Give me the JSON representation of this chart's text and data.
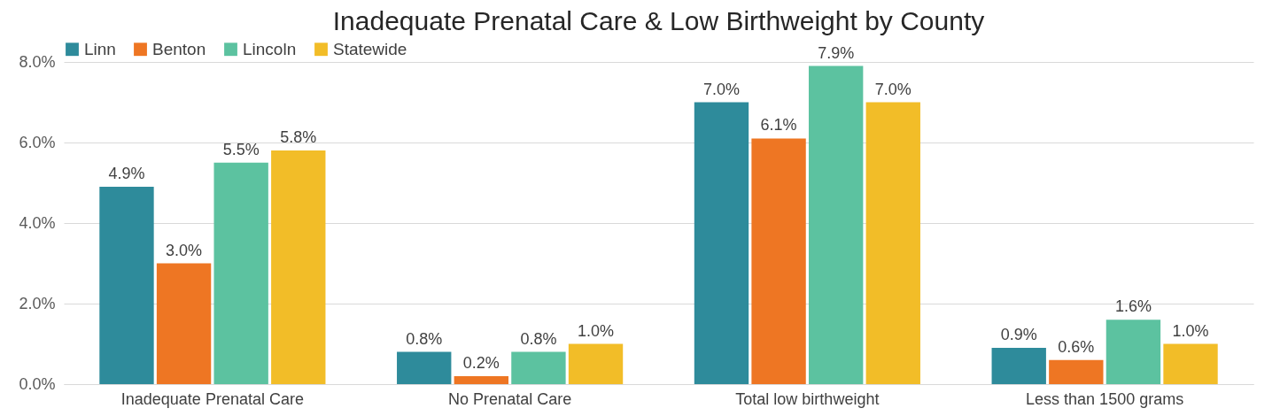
{
  "chart_data": {
    "type": "bar",
    "title": "Inadequate Prenatal Care & Low Birthweight by County",
    "categories": [
      "Inadequate Prenatal Care",
      "No Prenatal Care",
      "Total low birthweight",
      "Less than 1500 grams"
    ],
    "series": [
      {
        "name": "Linn",
        "color": "#2e8b9b",
        "values": [
          4.9,
          0.8,
          7.0,
          0.9
        ],
        "value_labels": [
          "4.9%",
          "0.8%",
          "7.0%",
          "0.9%"
        ]
      },
      {
        "name": "Benton",
        "color": "#ee7623",
        "values": [
          3.0,
          0.2,
          6.1,
          0.6
        ],
        "value_labels": [
          "3.0%",
          "0.2%",
          "6.1%",
          "0.6%"
        ]
      },
      {
        "name": "Lincoln",
        "color": "#5cc2a0",
        "values": [
          5.5,
          0.8,
          7.9,
          1.6
        ],
        "value_labels": [
          "5.5%",
          "0.8%",
          "7.9%",
          "1.6%"
        ]
      },
      {
        "name": "Statewide",
        "color": "#f2bd28",
        "values": [
          5.8,
          1.0,
          7.0,
          1.0
        ],
        "value_labels": [
          "5.8%",
          "1.0%",
          "7.0%",
          "1.0%"
        ]
      }
    ],
    "ylim": [
      0,
      8
    ],
    "yticks": [
      {
        "value": 0,
        "label": "0.0%"
      },
      {
        "value": 2,
        "label": "2.0%"
      },
      {
        "value": 4,
        "label": "4.0%"
      },
      {
        "value": 6,
        "label": "6.0%"
      },
      {
        "value": 8,
        "label": "8.0%"
      }
    ],
    "grid": "y",
    "legend": "top"
  }
}
